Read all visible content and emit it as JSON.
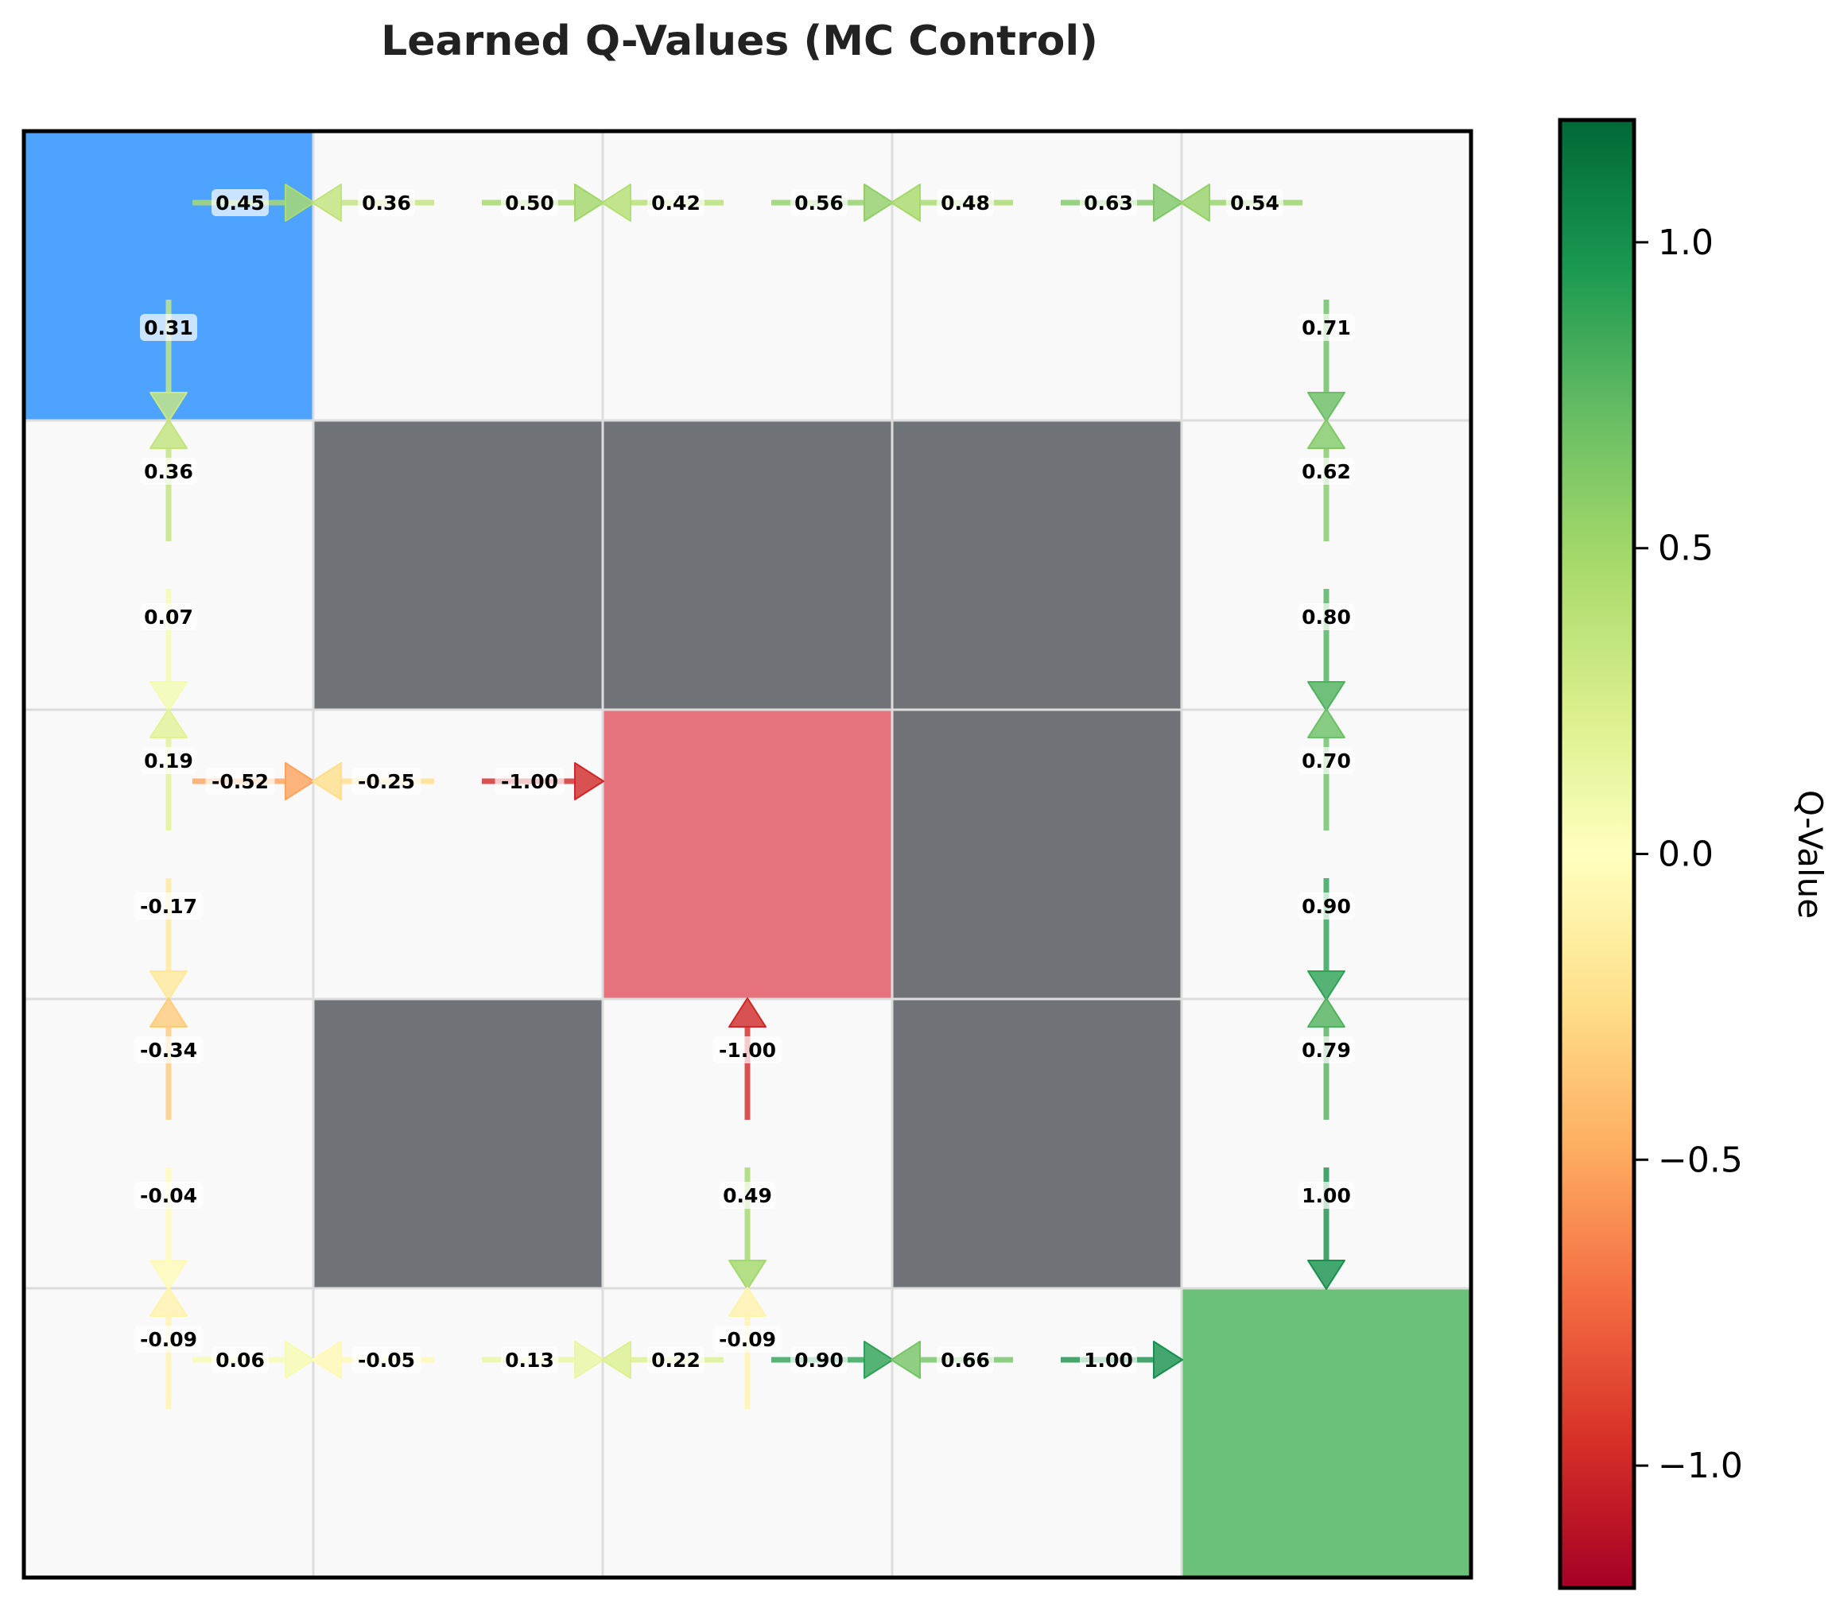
{
  "chart_data": {
    "type": "heatmap",
    "title": "Learned Q-Values (MC Control)",
    "grid": {
      "rows": 5,
      "cols": 5
    },
    "cell_types": [
      [
        "start",
        "empty",
        "empty",
        "empty",
        "empty"
      ],
      [
        "empty",
        "wall",
        "wall",
        "wall",
        "empty"
      ],
      [
        "empty",
        "empty",
        "trap",
        "wall",
        "empty"
      ],
      [
        "empty",
        "wall",
        "empty",
        "wall",
        "empty"
      ],
      [
        "empty",
        "empty",
        "empty",
        "empty",
        "goal"
      ]
    ],
    "cell_colors": {
      "start": "#4da3ff",
      "empty": "#f9f9f9",
      "wall": "#6f7378",
      "trap": "#e5727c",
      "goal": "#6cc17a"
    },
    "q_values": [
      {
        "row": 0,
        "col": 0,
        "action": "right",
        "value": 0.45,
        "label": "0.45"
      },
      {
        "row": 0,
        "col": 0,
        "action": "down",
        "value": 0.31,
        "label": "0.31"
      },
      {
        "row": 0,
        "col": 1,
        "action": "left",
        "value": 0.36,
        "label": "0.36"
      },
      {
        "row": 0,
        "col": 1,
        "action": "right",
        "value": 0.5,
        "label": "0.50"
      },
      {
        "row": 0,
        "col": 2,
        "action": "left",
        "value": 0.42,
        "label": "0.42"
      },
      {
        "row": 0,
        "col": 2,
        "action": "right",
        "value": 0.56,
        "label": "0.56"
      },
      {
        "row": 0,
        "col": 3,
        "action": "left",
        "value": 0.48,
        "label": "0.48"
      },
      {
        "row": 0,
        "col": 3,
        "action": "right",
        "value": 0.63,
        "label": "0.63"
      },
      {
        "row": 0,
        "col": 4,
        "action": "left",
        "value": 0.54,
        "label": "0.54"
      },
      {
        "row": 0,
        "col": 4,
        "action": "down",
        "value": 0.71,
        "label": "0.71"
      },
      {
        "row": 1,
        "col": 0,
        "action": "up",
        "value": 0.36,
        "label": "0.36"
      },
      {
        "row": 1,
        "col": 0,
        "action": "down",
        "value": 0.07,
        "label": "0.07"
      },
      {
        "row": 1,
        "col": 4,
        "action": "up",
        "value": 0.62,
        "label": "0.62"
      },
      {
        "row": 1,
        "col": 4,
        "action": "down",
        "value": 0.8,
        "label": "0.80"
      },
      {
        "row": 2,
        "col": 0,
        "action": "up",
        "value": 0.19,
        "label": "0.19"
      },
      {
        "row": 2,
        "col": 0,
        "action": "right",
        "value": -0.52,
        "label": "-0.52"
      },
      {
        "row": 2,
        "col": 0,
        "action": "down",
        "value": -0.17,
        "label": "-0.17"
      },
      {
        "row": 2,
        "col": 1,
        "action": "left",
        "value": -0.25,
        "label": "-0.25"
      },
      {
        "row": 2,
        "col": 1,
        "action": "right",
        "value": -1.0,
        "label": "-1.00"
      },
      {
        "row": 2,
        "col": 4,
        "action": "up",
        "value": 0.7,
        "label": "0.70"
      },
      {
        "row": 2,
        "col": 4,
        "action": "down",
        "value": 0.9,
        "label": "0.90"
      },
      {
        "row": 3,
        "col": 0,
        "action": "up",
        "value": -0.34,
        "label": "-0.34"
      },
      {
        "row": 3,
        "col": 0,
        "action": "down",
        "value": -0.04,
        "label": "-0.04"
      },
      {
        "row": 3,
        "col": 2,
        "action": "up",
        "value": -1.0,
        "label": "-1.00"
      },
      {
        "row": 3,
        "col": 2,
        "action": "down",
        "value": 0.49,
        "label": "0.49"
      },
      {
        "row": 3,
        "col": 4,
        "action": "up",
        "value": 0.79,
        "label": "0.79"
      },
      {
        "row": 3,
        "col": 4,
        "action": "down",
        "value": 1.0,
        "label": "1.00"
      },
      {
        "row": 4,
        "col": 0,
        "action": "up",
        "value": -0.09,
        "label": "-0.09"
      },
      {
        "row": 4,
        "col": 0,
        "action": "right",
        "value": 0.06,
        "label": "0.06"
      },
      {
        "row": 4,
        "col": 1,
        "action": "left",
        "value": -0.05,
        "label": "-0.05"
      },
      {
        "row": 4,
        "col": 1,
        "action": "right",
        "value": 0.13,
        "label": "0.13"
      },
      {
        "row": 4,
        "col": 2,
        "action": "up",
        "value": -0.09,
        "label": "-0.09"
      },
      {
        "row": 4,
        "col": 2,
        "action": "left",
        "value": 0.22,
        "label": "0.22"
      },
      {
        "row": 4,
        "col": 2,
        "action": "right",
        "value": 0.9,
        "label": "0.90"
      },
      {
        "row": 4,
        "col": 3,
        "action": "left",
        "value": 0.66,
        "label": "0.66"
      },
      {
        "row": 4,
        "col": 3,
        "action": "right",
        "value": 1.0,
        "label": "1.00"
      }
    ],
    "colorbar": {
      "label": "Q-Value",
      "colormap": "RdYlGn",
      "range": [
        -1.2,
        1.2
      ],
      "ticks": [
        {
          "value": 1.0,
          "label": "1.0"
        },
        {
          "value": 0.5,
          "label": "0.5"
        },
        {
          "value": 0.0,
          "label": "0.0"
        },
        {
          "value": -0.5,
          "label": "−0.5"
        },
        {
          "value": -1.0,
          "label": "−1.0"
        }
      ]
    }
  }
}
